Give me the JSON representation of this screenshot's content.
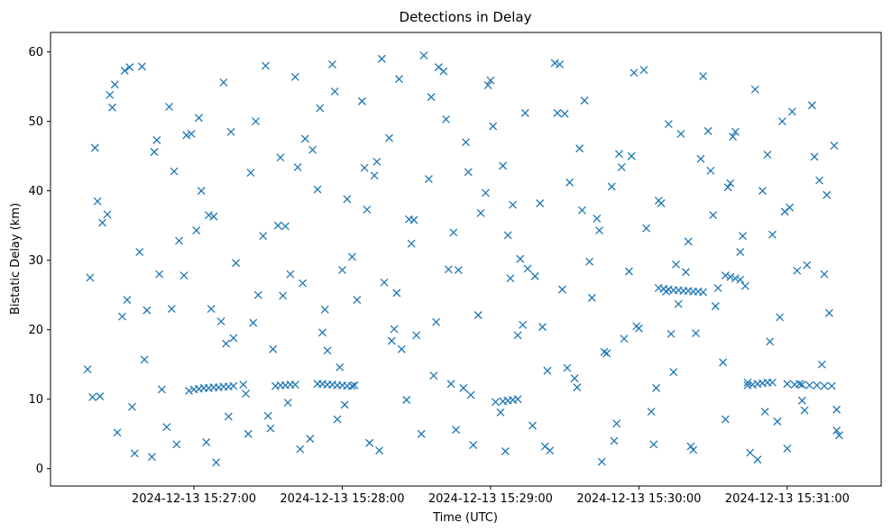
{
  "chart_data": {
    "type": "scatter",
    "title": "Detections in Delay",
    "xlabel": "Time (UTC)",
    "ylabel": "Bistatic Delay (km)",
    "marker": "x",
    "color": "#1f77b4",
    "grid": false,
    "xlim": [
      "2024-12-13 15:26:02",
      "2024-12-13 15:31:38"
    ],
    "ylim": [
      -2.5,
      62.8
    ],
    "x_ticks": [
      "2024-12-13 15:27:00",
      "2024-12-13 15:28:00",
      "2024-12-13 15:29:00",
      "2024-12-13 15:30:00",
      "2024-12-13 15:31:00"
    ],
    "y_ticks": [
      "0",
      "10",
      "20",
      "30",
      "40",
      "50",
      "60"
    ],
    "series": [
      {
        "x": [
          "2024-12-13 15:26:17",
          "2024-12-13 15:26:20",
          "2024-12-13 15:26:23",
          "2024-12-13 15:26:26",
          "2024-12-13 15:26:29",
          "2024-12-13 15:26:32",
          "2024-12-13 15:26:35",
          "2024-12-13 15:26:38",
          "2024-12-13 15:26:41",
          "2024-12-13 15:26:44",
          "2024-12-13 15:26:47",
          "2024-12-13 15:26:50",
          "2024-12-13 15:26:53",
          "2024-12-13 15:26:56",
          "2024-12-13 15:26:59",
          "2024-12-13 15:27:02",
          "2024-12-13 15:27:05",
          "2024-12-13 15:27:08",
          "2024-12-13 15:27:11",
          "2024-12-13 15:27:14",
          "2024-12-13 15:27:17",
          "2024-12-13 15:27:20",
          "2024-12-13 15:27:23",
          "2024-12-13 15:27:26",
          "2024-12-13 15:27:29",
          "2024-12-13 15:27:32",
          "2024-12-13 15:27:35",
          "2024-12-13 15:27:38",
          "2024-12-13 15:27:41",
          "2024-12-13 15:27:44",
          "2024-12-13 15:27:47",
          "2024-12-13 15:27:50",
          "2024-12-13 15:27:53",
          "2024-12-13 15:27:56",
          "2024-12-13 15:27:59",
          "2024-12-13 15:28:02",
          "2024-12-13 15:28:05",
          "2024-12-13 15:28:08",
          "2024-12-13 15:28:11",
          "2024-12-13 15:28:14",
          "2024-12-13 15:28:17",
          "2024-12-13 15:28:20",
          "2024-12-13 15:28:23",
          "2024-12-13 15:28:26",
          "2024-12-13 15:28:29",
          "2024-12-13 15:28:32",
          "2024-12-13 15:28:35",
          "2024-12-13 15:28:38",
          "2024-12-13 15:28:41",
          "2024-12-13 15:28:44",
          "2024-12-13 15:28:47",
          "2024-12-13 15:28:50",
          "2024-12-13 15:28:53",
          "2024-12-13 15:28:56",
          "2024-12-13 15:28:59",
          "2024-12-13 15:29:02",
          "2024-12-13 15:29:05",
          "2024-12-13 15:29:08",
          "2024-12-13 15:29:11",
          "2024-12-13 15:29:14",
          "2024-12-13 15:29:17",
          "2024-12-13 15:29:20",
          "2024-12-13 15:29:23",
          "2024-12-13 15:29:26",
          "2024-12-13 15:29:29",
          "2024-12-13 15:29:32",
          "2024-12-13 15:29:35",
          "2024-12-13 15:29:38",
          "2024-12-13 15:29:41",
          "2024-12-13 15:29:44",
          "2024-12-13 15:29:47",
          "2024-12-13 15:29:50",
          "2024-12-13 15:29:53",
          "2024-12-13 15:29:56",
          "2024-12-13 15:29:59",
          "2024-12-13 15:30:02",
          "2024-12-13 15:30:05",
          "2024-12-13 15:30:08",
          "2024-12-13 15:30:11",
          "2024-12-13 15:30:14",
          "2024-12-13 15:30:17",
          "2024-12-13 15:30:20",
          "2024-12-13 15:30:23",
          "2024-12-13 15:30:26",
          "2024-12-13 15:30:29",
          "2024-12-13 15:30:32",
          "2024-12-13 15:30:35",
          "2024-12-13 15:30:38",
          "2024-12-13 15:30:41",
          "2024-12-13 15:30:44",
          "2024-12-13 15:30:47",
          "2024-12-13 15:30:50",
          "2024-12-13 15:30:53",
          "2024-12-13 15:30:56",
          "2024-12-13 15:30:59",
          "2024-12-13 15:31:02",
          "2024-12-13 15:31:05",
          "2024-12-13 15:31:08",
          "2024-12-13 15:31:11",
          "2024-12-13 15:31:14",
          "2024-12-13 15:31:17",
          "2024-12-13 15:31:20",
          "2024-12-13 15:26:18",
          "2024-12-13 15:26:22",
          "2024-12-13 15:26:27",
          "2024-12-13 15:26:31",
          "2024-12-13 15:26:36",
          "2024-12-13 15:26:40",
          "2024-12-13 15:26:45",
          "2024-12-13 15:26:49",
          "2024-12-13 15:26:54",
          "2024-12-13 15:26:58",
          "2024-12-13 15:27:03",
          "2024-12-13 15:27:07",
          "2024-12-13 15:27:12",
          "2024-12-13 15:27:16",
          "2024-12-13 15:27:21",
          "2024-12-13 15:27:25",
          "2024-12-13 15:27:30",
          "2024-12-13 15:27:34",
          "2024-12-13 15:27:39",
          "2024-12-13 15:27:43",
          "2024-12-13 15:27:48",
          "2024-12-13 15:27:52",
          "2024-12-13 15:27:57",
          "2024-12-13 15:28:01",
          "2024-12-13 15:28:06",
          "2024-12-13 15:28:10",
          "2024-12-13 15:28:15",
          "2024-12-13 15:28:19",
          "2024-12-13 15:28:24",
          "2024-12-13 15:28:28",
          "2024-12-13 15:28:33",
          "2024-12-13 15:28:37",
          "2024-12-13 15:28:42",
          "2024-12-13 15:28:46",
          "2024-12-13 15:28:51",
          "2024-12-13 15:28:55",
          "2024-12-13 15:29:00",
          "2024-12-13 15:29:04",
          "2024-12-13 15:29:09",
          "2024-12-13 15:29:13",
          "2024-12-13 15:29:18",
          "2024-12-13 15:29:22",
          "2024-12-13 15:29:27",
          "2024-12-13 15:29:31",
          "2024-12-13 15:29:36",
          "2024-12-13 15:29:40",
          "2024-12-13 15:29:45",
          "2024-12-13 15:29:49",
          "2024-12-13 15:29:54",
          "2024-12-13 15:29:58",
          "2024-12-13 15:30:03",
          "2024-12-13 15:30:07",
          "2024-12-13 15:30:12",
          "2024-12-13 15:30:16",
          "2024-12-13 15:30:21",
          "2024-12-13 15:30:25",
          "2024-12-13 15:30:30",
          "2024-12-13 15:30:34",
          "2024-12-13 15:30:39",
          "2024-12-13 15:30:43",
          "2024-12-13 15:30:48",
          "2024-12-13 15:30:52",
          "2024-12-13 15:30:57",
          "2024-12-13 15:31:01",
          "2024-12-13 15:31:06",
          "2024-12-13 15:31:10",
          "2024-12-13 15:31:15",
          "2024-12-13 15:31:19",
          "2024-12-13 15:26:19",
          "2024-12-13 15:26:25",
          "2024-12-13 15:26:33",
          "2024-12-13 15:26:39",
          "2024-12-13 15:26:46",
          "2024-12-13 15:26:52",
          "2024-12-13 15:27:01",
          "2024-12-13 15:27:09",
          "2024-12-13 15:27:15",
          "2024-12-13 15:27:24",
          "2024-12-13 15:27:31",
          "2024-12-13 15:27:37",
          "2024-12-13 15:27:45",
          "2024-12-13 15:27:54",
          "2024-12-13 15:28:00",
          "2024-12-13 15:28:09",
          "2024-12-13 15:28:16",
          "2024-12-13 15:28:22",
          "2024-12-13 15:28:30",
          "2024-12-13 15:28:39",
          "2024-12-13 15:28:45",
          "2024-12-13 15:28:52",
          "2024-12-13 15:29:01",
          "2024-12-13 15:29:07",
          "2024-12-13 15:29:15",
          "2024-12-13 15:29:24",
          "2024-12-13 15:29:30",
          "2024-12-13 15:29:37",
          "2024-12-13 15:29:46",
          "2024-12-13 15:29:52",
          "2024-12-13 15:30:00",
          "2024-12-13 15:30:09",
          "2024-12-13 15:30:15",
          "2024-12-13 15:30:22",
          "2024-12-13 15:30:31",
          "2024-12-13 15:30:37",
          "2024-12-13 15:30:45",
          "2024-12-13 15:30:54",
          "2024-12-13 15:31:00",
          "2024-12-13 15:31:07",
          "2024-12-13 15:31:16",
          "2024-12-13 15:31:21",
          "2024-12-13 15:26:21",
          "2024-12-13 15:26:28",
          "2024-12-13 15:26:34",
          "2024-12-13 15:26:43",
          "2024-12-13 15:26:51",
          "2024-12-13 15:26:57",
          "2024-12-13 15:27:06",
          "2024-12-13 15:27:13",
          "2024-12-13 15:27:22",
          "2024-12-13 15:27:28",
          "2024-12-13 15:27:36",
          "2024-12-13 15:27:42",
          "2024-12-13 15:27:51",
          "2024-12-13 15:27:58",
          "2024-12-13 15:28:04",
          "2024-12-13 15:28:13",
          "2024-12-13 15:28:21",
          "2024-12-13 15:28:27",
          "2024-12-13 15:28:36",
          "2024-12-13 15:28:43",
          "2024-12-13 15:28:49",
          "2024-12-13 15:28:58",
          "2024-12-13 15:29:06",
          "2024-12-13 15:29:12",
          "2024-12-13 15:29:21",
          "2024-12-13 15:29:28",
          "2024-12-13 15:29:34",
          "2024-12-13 15:29:43",
          "2024-12-13 15:29:51",
          "2024-12-13 15:29:57",
          "2024-12-13 15:30:06",
          "2024-12-13 15:30:13",
          "2024-12-13 15:30:19",
          "2024-12-13 15:30:28",
          "2024-12-13 15:30:36",
          "2024-12-13 15:30:42",
          "2024-12-13 15:30:51",
          "2024-12-13 15:30:58",
          "2024-12-13 15:31:04",
          "2024-12-13 15:31:13",
          "2024-12-13 15:31:20",
          "2024-12-13 15:27:00",
          "2024-12-13 15:27:02",
          "2024-12-13 15:27:04",
          "2024-12-13 15:27:06",
          "2024-12-13 15:27:08",
          "2024-12-13 15:27:10",
          "2024-12-13 15:27:12",
          "2024-12-13 15:27:14",
          "2024-12-13 15:27:16",
          "2024-12-13 15:27:33",
          "2024-12-13 15:27:35",
          "2024-12-13 15:27:37",
          "2024-12-13 15:27:39",
          "2024-12-13 15:27:41",
          "2024-12-13 15:27:50",
          "2024-12-13 15:27:52",
          "2024-12-13 15:27:54",
          "2024-12-13 15:27:56",
          "2024-12-13 15:27:58",
          "2024-12-13 15:28:00",
          "2024-12-13 15:28:02",
          "2024-12-13 15:28:04",
          "2024-12-13 15:29:05",
          "2024-12-13 15:29:07",
          "2024-12-13 15:29:09",
          "2024-12-13 15:29:11",
          "2024-12-13 15:30:08",
          "2024-12-13 15:30:10",
          "2024-12-13 15:30:12",
          "2024-12-13 15:30:14",
          "2024-12-13 15:30:16",
          "2024-12-13 15:30:18",
          "2024-12-13 15:30:20",
          "2024-12-13 15:30:22",
          "2024-12-13 15:30:24",
          "2024-12-13 15:30:26",
          "2024-12-13 15:30:35",
          "2024-12-13 15:30:37",
          "2024-12-13 15:30:39",
          "2024-12-13 15:30:41",
          "2024-12-13 15:30:44",
          "2024-12-13 15:30:46",
          "2024-12-13 15:30:48",
          "2024-12-13 15:30:50",
          "2024-12-13 15:30:52",
          "2024-12-13 15:30:54",
          "2024-12-13 15:31:00",
          "2024-12-13 15:31:03",
          "2024-12-13 15:31:06",
          "2024-12-13 15:31:09",
          "2024-12-13 15:31:12",
          "2024-12-13 15:31:15",
          "2024-12-13 15:31:18"
        ],
        "y": [
          14.3,
          46.2,
          35.4,
          53.8,
          5.2,
          57.3,
          8.9,
          31.2,
          22.8,
          45.6,
          11.4,
          52.1,
          3.5,
          27.8,
          48.2,
          50.5,
          3.8,
          36.3,
          21.2,
          7.5,
          29.6,
          12.1,
          42.6,
          25.0,
          58.0,
          17.2,
          44.8,
          9.5,
          56.4,
          26.7,
          4.3,
          40.2,
          22.9,
          58.2,
          14.6,
          38.8,
          12.0,
          52.9,
          3.7,
          44.2,
          26.8,
          18.4,
          56.1,
          9.9,
          35.8,
          5.0,
          41.7,
          21.1,
          57.2,
          12.2,
          28.6,
          47.0,
          3.4,
          36.8,
          55.2,
          9.6,
          43.6,
          27.4,
          19.2,
          51.2,
          6.2,
          38.2,
          14.1,
          58.4,
          25.8,
          41.2,
          11.7,
          53.0,
          24.6,
          34.3,
          16.6,
          4.0,
          43.4,
          28.4,
          20.5,
          57.4,
          8.2,
          38.6,
          25.5,
          13.9,
          48.2,
          32.7,
          19.5,
          56.5,
          42.9,
          26.0,
          7.1,
          47.8,
          31.2,
          12.4,
          54.6,
          40.0,
          18.3,
          6.8,
          37.0,
          51.4,
          12.2,
          29.3,
          44.9,
          15.0,
          22.4,
          5.5,
          27.5,
          10.4,
          52.0,
          21.9,
          2.2,
          15.7,
          47.3,
          6.0,
          32.8,
          11.2,
          40.0,
          23.0,
          55.6,
          18.8,
          10.8,
          50.0,
          7.6,
          35.0,
          28.0,
          2.8,
          45.9,
          19.6,
          54.3,
          9.2,
          24.3,
          37.3,
          2.6,
          47.6,
          17.2,
          32.4,
          59.5,
          13.4,
          50.3,
          5.6,
          42.7,
          22.1,
          55.9,
          8.1,
          38.0,
          20.7,
          27.7,
          3.2,
          51.2,
          14.5,
          46.1,
          29.8,
          1.0,
          40.6,
          18.7,
          57.0,
          34.6,
          11.6,
          49.6,
          23.7,
          3.2,
          44.6,
          36.5,
          15.3,
          48.5,
          26.3,
          1.3,
          45.2,
          21.8,
          37.6,
          9.8,
          52.3,
          28.0,
          46.5,
          10.3,
          36.6,
          24.3,
          57.9,
          28.0,
          42.8,
          34.3,
          0.9,
          48.5,
          21.0,
          5.8,
          34.9,
          47.5,
          17.0,
          28.6,
          43.3,
          59.0,
          25.3,
          19.2,
          57.8,
          34.0,
          10.6,
          49.3,
          33.6,
          28.8,
          2.6,
          51.1,
          37.2,
          16.8,
          45.3,
          20.2,
          38.2,
          29.4,
          2.7,
          23.4,
          41.1,
          2.3,
          33.7,
          2.9,
          8.4,
          39.4,
          4.8,
          38.5,
          55.3,
          57.8,
          1.7,
          23.0,
          48.0,
          36.5,
          18.0,
          5.0,
          33.5,
          24.9,
          43.4,
          51.9,
          7.1,
          30.5,
          42.2,
          20.1,
          35.9,
          53.5,
          28.7,
          11.6,
          39.7,
          2.5,
          30.2,
          20.4,
          58.2,
          13.0,
          36.0,
          6.5,
          45.0,
          3.5,
          19.4,
          28.3,
          48.6,
          40.5,
          33.5,
          8.2,
          50.0,
          28.5,
          41.5,
          8.5,
          11.4,
          11.5,
          11.6,
          11.6,
          11.7,
          11.7,
          11.8,
          11.8,
          11.9,
          11.9,
          12.0,
          12.0,
          12.1,
          12.1,
          12.2,
          12.2,
          12.1,
          12.1,
          12.0,
          12.0,
          11.9,
          11.9,
          9.7,
          9.8,
          9.9,
          10.0,
          26.0,
          25.9,
          25.8,
          25.7,
          25.7,
          25.6,
          25.6,
          25.5,
          25.5,
          25.4,
          27.8,
          27.6,
          27.4,
          27.2,
          12.0,
          12.1,
          12.2,
          12.3,
          12.4,
          12.4,
          12.2,
          12.1,
          12.1,
          12.0,
          12.0,
          11.9,
          11.9
        ]
      }
    ]
  }
}
